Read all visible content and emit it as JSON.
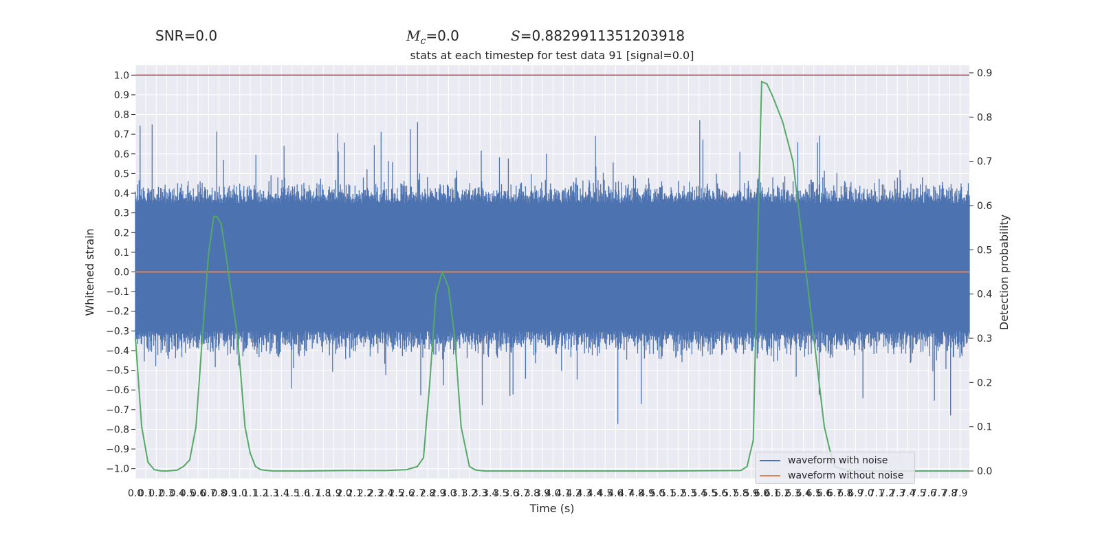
{
  "header": {
    "snr_text": "SNR=0.0",
    "mc_symbol": "M",
    "mc_sub": "c",
    "mc_value": "=0.0",
    "s_symbol": "S",
    "s_value": "=0.8829911351203918"
  },
  "chart_data": {
    "type": "line",
    "title": "stats at each timestep for test data 91 [signal=0.0]",
    "xlabel": "Time (s)",
    "ylabel": "Whitened strain",
    "y2label": "Detection probability",
    "xlim": [
      0.0,
      7.99
    ],
    "ylim": [
      -1.05,
      1.05
    ],
    "y2lim": [
      -0.017,
      0.917
    ],
    "x_ticks": [
      "0.0",
      "0.1",
      "0.2",
      "0.3",
      "0.4",
      "0.5",
      "0.6",
      "0.7",
      "0.8",
      "0.9",
      "1.0",
      "1.1",
      "1.2",
      "1.3",
      "1.4",
      "1.5",
      "1.6",
      "1.7",
      "1.8",
      "1.9",
      "2.0",
      "2.1",
      "2.2",
      "2.3",
      "2.4",
      "2.5",
      "2.6",
      "2.7",
      "2.8",
      "2.9",
      "3.0",
      "3.1",
      "3.2",
      "3.3",
      "3.4",
      "3.5",
      "3.6",
      "3.7",
      "3.8",
      "3.9",
      "4.0",
      "4.1",
      "4.2",
      "4.3",
      "4.4",
      "4.5",
      "4.6",
      "4.7",
      "4.8",
      "4.9",
      "5.0",
      "5.1",
      "5.2",
      "5.3",
      "5.4",
      "5.5",
      "5.6",
      "5.7",
      "5.8",
      "5.9",
      "6.0",
      "6.1",
      "6.2",
      "6.3",
      "6.4",
      "6.5",
      "6.6",
      "6.7",
      "6.8",
      "6.9",
      "7.0",
      "7.1",
      "7.2",
      "7.3",
      "7.4",
      "7.5",
      "7.6",
      "7.7",
      "7.8",
      "7.9"
    ],
    "y_ticks": [
      "1.0",
      "0.9",
      "0.8",
      "0.7",
      "0.6",
      "0.5",
      "0.4",
      "0.3",
      "0.2",
      "0.1",
      "0.0",
      "-0.1",
      "-0.2",
      "-0.3",
      "-0.4",
      "-0.5",
      "-0.6",
      "-0.7",
      "-0.8",
      "-0.9",
      "-1.0"
    ],
    "y2_ticks": [
      "0.9",
      "0.8",
      "0.7",
      "0.6",
      "0.5",
      "0.4",
      "0.3",
      "0.2",
      "0.1",
      "0.0"
    ],
    "threshold": {
      "y": 1.0,
      "color": "#c44e52"
    },
    "series": [
      {
        "name": "waveform with noise",
        "color": "#4c72b0",
        "style": "dense noise band",
        "core_range": [
          -0.3,
          0.35
        ],
        "peak_max": 1.0,
        "peak_min": -0.94,
        "random_seed": 91
      },
      {
        "name": "waveform without noise",
        "color": "#dd8452",
        "x": [
          0.0,
          7.99
        ],
        "y": [
          0.0,
          0.0
        ]
      },
      {
        "name": "detection probability",
        "axis": "right",
        "color": "#55a868",
        "x": [
          0.0,
          0.06,
          0.12,
          0.18,
          0.25,
          0.3,
          0.4,
          0.46,
          0.52,
          0.58,
          0.64,
          0.7,
          0.75,
          0.78,
          0.82,
          0.86,
          0.92,
          0.98,
          1.05,
          1.1,
          1.15,
          1.2,
          1.27,
          1.32,
          1.4,
          1.6,
          2.0,
          2.4,
          2.6,
          2.7,
          2.76,
          2.82,
          2.88,
          2.94,
          3.0,
          3.06,
          3.12,
          3.2,
          3.26,
          3.35,
          4.0,
          5.0,
          5.8,
          5.86,
          5.92,
          5.96,
          6.0,
          6.05,
          6.1,
          6.2,
          6.3,
          6.4,
          6.5,
          6.6,
          6.65,
          6.7,
          6.8,
          7.0,
          7.99
        ],
        "y": [
          0.3,
          0.1,
          0.02,
          0.003,
          0.0,
          0.0,
          0.002,
          0.01,
          0.025,
          0.1,
          0.3,
          0.49,
          0.575,
          0.575,
          0.56,
          0.5,
          0.4,
          0.3,
          0.1,
          0.04,
          0.01,
          0.003,
          0.001,
          0.0,
          0.0,
          0.0,
          0.001,
          0.001,
          0.003,
          0.01,
          0.03,
          0.2,
          0.4,
          0.45,
          0.415,
          0.3,
          0.1,
          0.01,
          0.002,
          0.0,
          0.0,
          0.0,
          0.001,
          0.01,
          0.07,
          0.5,
          0.88,
          0.875,
          0.85,
          0.79,
          0.7,
          0.5,
          0.3,
          0.1,
          0.05,
          0.01,
          0.002,
          0.0,
          0.0
        ]
      }
    ],
    "legend_position": "lower right",
    "grid": true
  }
}
